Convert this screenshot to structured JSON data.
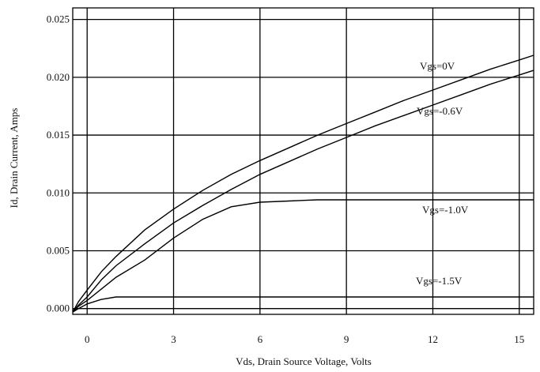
{
  "chart_data": {
    "type": "line",
    "title": "",
    "xlabel": "Vds, Drain Source Voltage, Volts",
    "ylabel": "Id, Drain Current, Amps",
    "xlim": [
      -0.5,
      15.5
    ],
    "ylim": [
      -0.0005,
      0.026
    ],
    "x_ticks": [
      "0",
      "3",
      "6",
      "9",
      "12",
      "15"
    ],
    "y_ticks": [
      "0.000",
      "0.005",
      "0.010",
      "0.015",
      "0.020",
      "0.025"
    ],
    "grid": true,
    "series": [
      {
        "name": "Vgs=0V",
        "x": [
          -0.5,
          -0.3,
          0,
          0.5,
          1,
          2,
          3,
          4,
          5,
          6,
          7,
          8,
          9,
          10,
          11,
          12,
          13,
          14,
          15,
          15.5
        ],
        "y": [
          -0.0003,
          0.0006,
          0.0016,
          0.0032,
          0.0045,
          0.0068,
          0.0086,
          0.0102,
          0.0116,
          0.0128,
          0.0139,
          0.015,
          0.016,
          0.017,
          0.018,
          0.0189,
          0.0198,
          0.0207,
          0.0215,
          0.0219
        ]
      },
      {
        "name": "Vgs=-0.6V",
        "x": [
          -0.5,
          -0.3,
          0,
          0.5,
          1,
          2,
          3,
          4,
          5,
          6,
          7,
          8,
          9,
          10,
          11,
          12,
          13,
          14,
          15,
          15.5
        ],
        "y": [
          -0.0003,
          0.0003,
          0.001,
          0.0025,
          0.0037,
          0.0056,
          0.0074,
          0.0089,
          0.0103,
          0.0116,
          0.0127,
          0.0138,
          0.0148,
          0.0158,
          0.0167,
          0.0176,
          0.0185,
          0.0194,
          0.0202,
          0.0206
        ]
      },
      {
        "name": "Vgs=-1.0V",
        "x": [
          -0.5,
          -0.3,
          0,
          0.5,
          1,
          2,
          3,
          4,
          5,
          6,
          7,
          8,
          9,
          10,
          11,
          12,
          13,
          14,
          15,
          15.5
        ],
        "y": [
          -0.0003,
          0.0002,
          0.0007,
          0.0017,
          0.0027,
          0.0042,
          0.0061,
          0.0077,
          0.0088,
          0.0092,
          0.0093,
          0.0094,
          0.0094,
          0.0094,
          0.0094,
          0.0094,
          0.0094,
          0.0094,
          0.0094,
          0.0094
        ]
      },
      {
        "name": "Vgs=-1.5V",
        "x": [
          -0.5,
          -0.3,
          0,
          0.5,
          1,
          2,
          3,
          6,
          9,
          12,
          15,
          15.5
        ],
        "y": [
          -0.0003,
          0.0,
          0.0004,
          0.0008,
          0.001,
          0.001,
          0.001,
          0.001,
          0.001,
          0.001,
          0.001,
          0.001
        ]
      }
    ]
  }
}
